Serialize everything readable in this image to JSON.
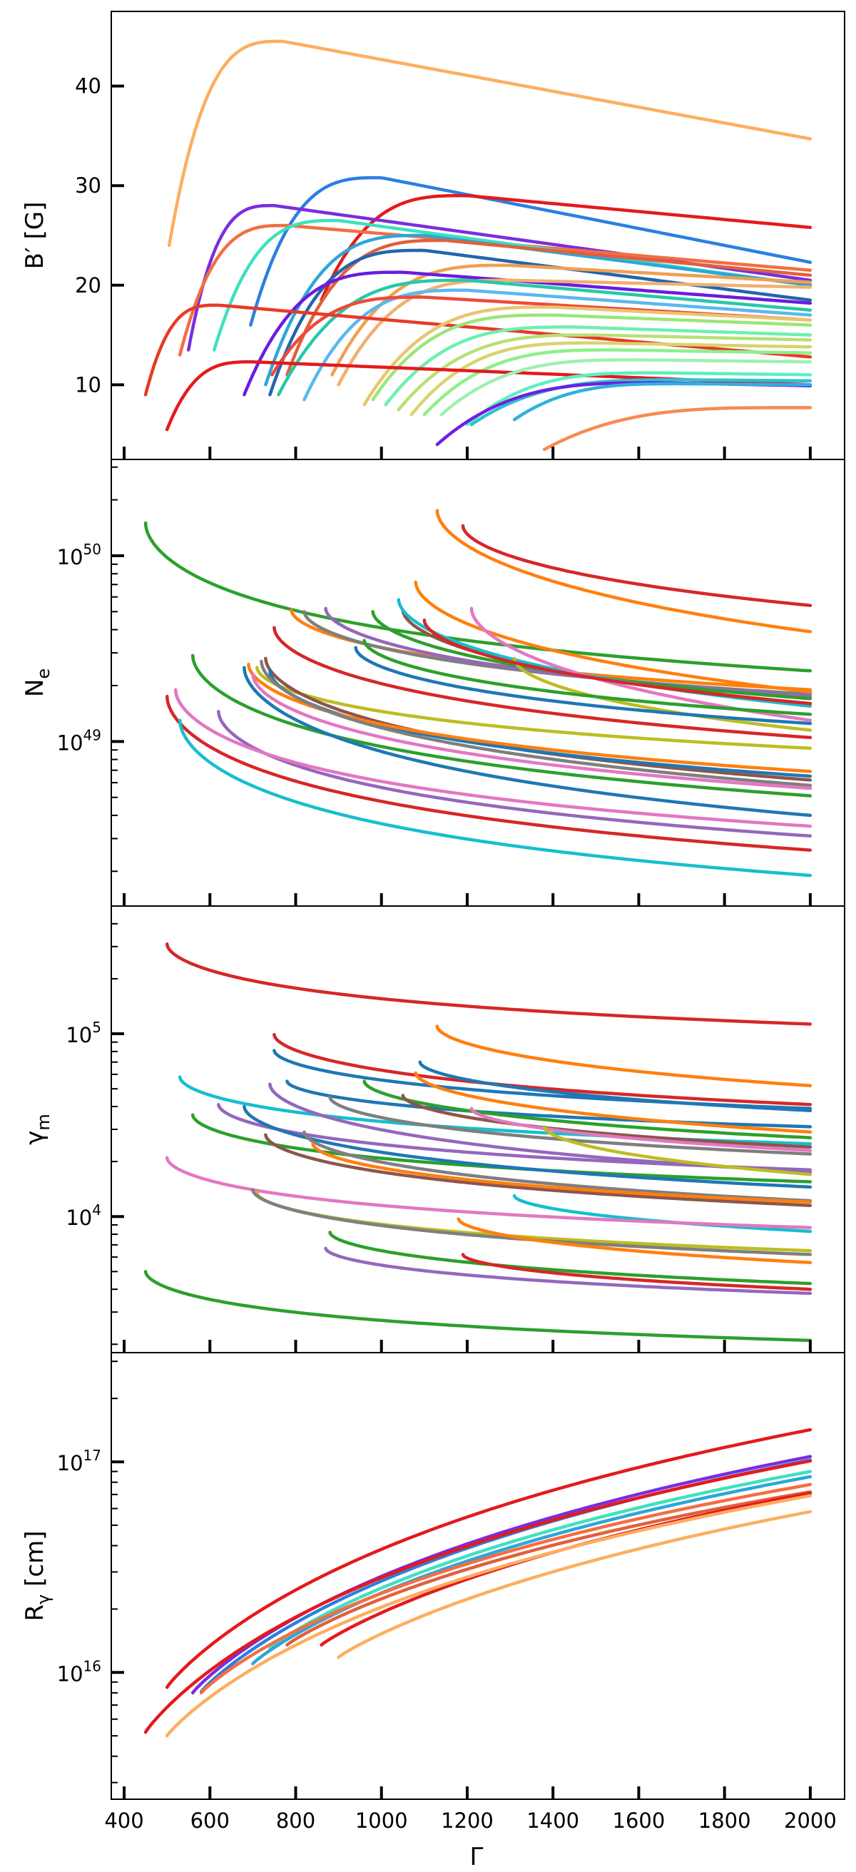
{
  "xlabel": "Γ",
  "x_ticks": [
    "400",
    "600",
    "800",
    "1000",
    "1200",
    "1400",
    "1600",
    "1800",
    "2000"
  ],
  "chart_data": [
    {
      "type": "line",
      "scale": "linear",
      "ylabel": "B′ [G]",
      "xlim": [
        370,
        2080
      ],
      "ylim": [
        2.5,
        47.5
      ],
      "y_ticks": [
        {
          "value": 10,
          "label": "10"
        },
        {
          "value": 20,
          "label": "20"
        },
        {
          "value": 30,
          "label": "30"
        },
        {
          "value": 40,
          "label": "40"
        }
      ],
      "series": [
        {
          "color": "#fdae61",
          "start": 505,
          "end": 2000,
          "y_start": 24,
          "y_peak": 44.5,
          "x_peak": 770,
          "y_end": 34.7
        },
        {
          "color": "#2c7fe0",
          "start": 695,
          "end": 2000,
          "y_start": 16,
          "y_peak": 30.8,
          "x_peak": 1000,
          "y_end": 22.3
        },
        {
          "color": "#e41a1c",
          "start": 860,
          "end": 2000,
          "y_start": 18.5,
          "y_peak": 29,
          "x_peak": 1200,
          "y_end": 25.8
        },
        {
          "color": "#7b2de0",
          "start": 550,
          "end": 2000,
          "y_start": 13.5,
          "y_peak": 28,
          "x_peak": 750,
          "y_end": 20.5
        },
        {
          "color": "#f46d43",
          "start": 530,
          "end": 2000,
          "y_start": 13,
          "y_peak": 26,
          "x_peak": 780,
          "y_end": 21.5
        },
        {
          "color": "#3fe0c0",
          "start": 610,
          "end": 2000,
          "y_start": 13.5,
          "y_peak": 26.5,
          "x_peak": 900,
          "y_end": 20
        },
        {
          "color": "#2ca7d8",
          "start": 730,
          "end": 2000,
          "y_start": 10,
          "y_peak": 25,
          "x_peak": 1100,
          "y_end": 20
        },
        {
          "color": "#e0603c",
          "start": 780,
          "end": 2000,
          "y_start": 11,
          "y_peak": 24.5,
          "x_peak": 1150,
          "y_end": 21
        },
        {
          "color": "#2166ac",
          "start": 740,
          "end": 2000,
          "y_start": 9,
          "y_peak": 23.5,
          "x_peak": 1100,
          "y_end": 18.5
        },
        {
          "color": "#f0a050",
          "start": 885,
          "end": 2000,
          "y_start": 11,
          "y_peak": 22,
          "x_peak": 1300,
          "y_end": 20.3
        },
        {
          "color": "#6a1ce0",
          "start": 680,
          "end": 2000,
          "y_start": 9,
          "y_peak": 21.3,
          "x_peak": 1050,
          "y_end": 18.2
        },
        {
          "color": "#f0b070",
          "start": 900,
          "end": 2000,
          "y_start": 10,
          "y_peak": 20.5,
          "x_peak": 1300,
          "y_end": 19.8
        },
        {
          "color": "#26c9a6",
          "start": 760,
          "end": 2000,
          "y_start": 9,
          "y_peak": 20.5,
          "x_peak": 1200,
          "y_end": 17.5
        },
        {
          "color": "#5ab8f0",
          "start": 820,
          "end": 2000,
          "y_start": 8.5,
          "y_peak": 19.5,
          "x_peak": 1200,
          "y_end": 17
        },
        {
          "color": "#ef4a3a",
          "start": 745,
          "end": 2000,
          "y_start": 11,
          "y_peak": 18.8,
          "x_peak": 1100,
          "y_end": 16.5
        },
        {
          "color": "#e83a26",
          "start": 450,
          "end": 2000,
          "y_start": 9,
          "y_peak": 18,
          "x_peak": 620,
          "y_end": 12.8
        },
        {
          "color": "#e8c56f",
          "start": 960,
          "end": 2000,
          "y_start": 8,
          "y_peak": 17.8,
          "x_peak": 1400,
          "y_end": 16.5
        },
        {
          "color": "#9be67a",
          "start": 980,
          "end": 2000,
          "y_start": 8.5,
          "y_peak": 17,
          "x_peak": 1400,
          "y_end": 16
        },
        {
          "color": "#6cf0b0",
          "start": 1010,
          "end": 2000,
          "y_start": 8,
          "y_peak": 15.8,
          "x_peak": 1450,
          "y_end": 15
        },
        {
          "color": "#b7e076",
          "start": 1040,
          "end": 2000,
          "y_start": 7.5,
          "y_peak": 15,
          "x_peak": 1500,
          "y_end": 14.5
        },
        {
          "color": "#d8d46f",
          "start": 1070,
          "end": 2000,
          "y_start": 7,
          "y_peak": 14.2,
          "x_peak": 1500,
          "y_end": 13.8
        },
        {
          "color": "#8ef08a",
          "start": 1100,
          "end": 2000,
          "y_start": 7,
          "y_peak": 13.5,
          "x_peak": 1550,
          "y_end": 13.2
        },
        {
          "color": "#e41a1c",
          "start": 500,
          "end": 2000,
          "y_start": 5.5,
          "y_peak": 12.3,
          "x_peak": 700,
          "y_end": 10
        },
        {
          "color": "#9ff0b0",
          "start": 1140,
          "end": 2000,
          "y_start": 7,
          "y_peak": 12.5,
          "x_peak": 1600,
          "y_end": 12.3
        },
        {
          "color": "#5cf0c0",
          "start": 1200,
          "end": 2000,
          "y_start": 6,
          "y_peak": 11.2,
          "x_peak": 1650,
          "y_end": 11
        },
        {
          "color": "#30c0d0",
          "start": 1210,
          "end": 2000,
          "y_start": 6,
          "y_peak": 10.5,
          "x_peak": 1700,
          "y_end": 10.4
        },
        {
          "color": "#7020e0",
          "start": 1130,
          "end": 2000,
          "y_start": 4,
          "y_peak": 10.2,
          "x_peak": 1650,
          "y_end": 9.9
        },
        {
          "color": "#30b0e0",
          "start": 1310,
          "end": 2000,
          "y_start": 6.5,
          "y_peak": 10.1,
          "x_peak": 1700,
          "y_end": 10
        },
        {
          "color": "#f88a50",
          "start": 1380,
          "end": 2000,
          "y_start": 3.5,
          "y_peak": 7.7,
          "x_peak": 1950,
          "y_end": 7.7
        }
      ]
    },
    {
      "type": "line",
      "scale": "log",
      "ylabel": "Ne",
      "ylabel_main": "N",
      "ylabel_sub": "e",
      "xlim": [
        370,
        2080
      ],
      "ylim": [
        1.3e+48,
        3.3e+50
      ],
      "y_ticks": [
        {
          "value": 1e+49,
          "label": "10",
          "exp": "49"
        },
        {
          "value": 1e+50,
          "label": "10",
          "exp": "50"
        }
      ],
      "series": [
        {
          "color": "#2ca02c",
          "start": 450,
          "end": 2000,
          "y_start": 1.5e+50,
          "y_end": 2.4e+49
        },
        {
          "color": "#ff7f0e",
          "start": 1130,
          "end": 2000,
          "y_start": 1.75e+50,
          "y_end": 3.9e+49
        },
        {
          "color": "#d62728",
          "start": 1190,
          "end": 2000,
          "y_start": 1.45e+50,
          "y_end": 5.4e+49
        },
        {
          "color": "#ff7f0e",
          "start": 790,
          "end": 2000,
          "y_start": 5.1e+49,
          "y_end": 1.9e+49
        },
        {
          "color": "#7f7f7f",
          "start": 820,
          "end": 2000,
          "y_start": 5e+49,
          "y_end": 1.8e+49
        },
        {
          "color": "#9467bd",
          "start": 870,
          "end": 2000,
          "y_start": 5.2e+49,
          "y_end": 1.75e+49
        },
        {
          "color": "#2ca02c",
          "start": 980,
          "end": 2000,
          "y_start": 5e+49,
          "y_end": 1.7e+49
        },
        {
          "color": "#ff7f0e",
          "start": 1080,
          "end": 2000,
          "y_start": 7.2e+49,
          "y_end": 1.85e+49
        },
        {
          "color": "#8c564b",
          "start": 1050,
          "end": 2000,
          "y_start": 5.1e+49,
          "y_end": 1.6e+49
        },
        {
          "color": "#17becf",
          "start": 1040,
          "end": 2000,
          "y_start": 5.8e+49,
          "y_end": 1.55e+49
        },
        {
          "color": "#e377c2",
          "start": 1210,
          "end": 2000,
          "y_start": 5.2e+49,
          "y_end": 1.3e+49
        },
        {
          "color": "#bcbd22",
          "start": 1310,
          "end": 2000,
          "y_start": 2.8e+49,
          "y_end": 1.15e+49
        },
        {
          "color": "#d62728",
          "start": 750,
          "end": 2000,
          "y_start": 4.1e+49,
          "y_end": 1.05e+49
        },
        {
          "color": "#2ca02c",
          "start": 560,
          "end": 2000,
          "y_start": 2.9e+49,
          "y_end": 5.1e+48
        },
        {
          "color": "#1f77b4",
          "start": 680,
          "end": 2000,
          "y_start": 2.5e+49,
          "y_end": 4e+48
        },
        {
          "color": "#9467bd",
          "start": 620,
          "end": 2000,
          "y_start": 1.45e+49,
          "y_end": 3.1e+48
        },
        {
          "color": "#e377c2",
          "start": 520,
          "end": 2000,
          "y_start": 1.9e+49,
          "y_end": 3.5e+48
        },
        {
          "color": "#d62728",
          "start": 500,
          "end": 2000,
          "y_start": 1.75e+49,
          "y_end": 2.6e+48
        },
        {
          "color": "#17becf",
          "start": 530,
          "end": 2000,
          "y_start": 1.3e+49,
          "y_end": 1.9e+48
        },
        {
          "color": "#bcbd22",
          "start": 710,
          "end": 2000,
          "y_start": 2.5e+49,
          "y_end": 9.2e+48
        },
        {
          "color": "#8c564b",
          "start": 730,
          "end": 2000,
          "y_start": 2.8e+49,
          "y_end": 6.2e+48
        },
        {
          "color": "#1f77b4",
          "start": 740,
          "end": 2000,
          "y_start": 2.4e+49,
          "y_end": 6.5e+48
        },
        {
          "color": "#ff7f0e",
          "start": 690,
          "end": 2000,
          "y_start": 2.6e+49,
          "y_end": 6.9e+48
        },
        {
          "color": "#7f7f7f",
          "start": 720,
          "end": 2000,
          "y_start": 2.7e+49,
          "y_end": 5.8e+48
        },
        {
          "color": "#e377c2",
          "start": 700,
          "end": 2000,
          "y_start": 2.3e+49,
          "y_end": 5.6e+48
        },
        {
          "color": "#2ca02c",
          "start": 960,
          "end": 2000,
          "y_start": 3.5e+49,
          "y_end": 1.4e+49
        },
        {
          "color": "#1f77b4",
          "start": 940,
          "end": 2000,
          "y_start": 3.2e+49,
          "y_end": 1.25e+49
        },
        {
          "color": "#d62728",
          "start": 1100,
          "end": 2000,
          "y_start": 4.5e+49,
          "y_end": 1.6e+49
        }
      ]
    },
    {
      "type": "line",
      "scale": "log",
      "ylabel": "γm",
      "ylabel_main": "γ",
      "ylabel_sub": "m",
      "xlim": [
        370,
        2080
      ],
      "ylim": [
        1800.0,
        500000.0
      ],
      "y_ticks": [
        {
          "value": 10000.0,
          "label": "10",
          "exp": "4"
        },
        {
          "value": 100000.0,
          "label": "10",
          "exp": "5"
        }
      ],
      "series": [
        {
          "color": "#d62728",
          "start": 500,
          "end": 2000,
          "y_start": 310000.0,
          "y_end": 113000.0
        },
        {
          "color": "#ff7f0e",
          "start": 1130,
          "end": 2000,
          "y_start": 110000.0,
          "y_end": 52000.0
        },
        {
          "color": "#d62728",
          "start": 750,
          "end": 2000,
          "y_start": 99000.0,
          "y_end": 41000.0
        },
        {
          "color": "#1f77b4",
          "start": 750,
          "end": 2000,
          "y_start": 81000.0,
          "y_end": 39000.0
        },
        {
          "color": "#1f77b4",
          "start": 1090,
          "end": 2000,
          "y_start": 70000.0,
          "y_end": 38000.0
        },
        {
          "color": "#1f77b4",
          "start": 780,
          "end": 2000,
          "y_start": 55000.0,
          "y_end": 31000.0
        },
        {
          "color": "#17becf",
          "start": 530,
          "end": 2000,
          "y_start": 58000.0,
          "y_end": 25000.0
        },
        {
          "color": "#2ca02c",
          "start": 960,
          "end": 2000,
          "y_start": 55000.0,
          "y_end": 27000.0
        },
        {
          "color": "#ff7f0e",
          "start": 1080,
          "end": 2000,
          "y_start": 61000.0,
          "y_end": 29000.0
        },
        {
          "color": "#7f7f7f",
          "start": 880,
          "end": 2000,
          "y_start": 45000.0,
          "y_end": 22000.0
        },
        {
          "color": "#8c564b",
          "start": 1050,
          "end": 2000,
          "y_start": 46000.0,
          "y_end": 24000.0
        },
        {
          "color": "#9467bd",
          "start": 620,
          "end": 2000,
          "y_start": 41000.0,
          "y_end": 18000.0
        },
        {
          "color": "#9467bd",
          "start": 740,
          "end": 2000,
          "y_start": 53000.0,
          "y_end": 17500.0
        },
        {
          "color": "#2ca02c",
          "start": 560,
          "end": 2000,
          "y_start": 36000.0,
          "y_end": 15500.0
        },
        {
          "color": "#1f77b4",
          "start": 680,
          "end": 2000,
          "y_start": 40000.0,
          "y_end": 14500.0
        },
        {
          "color": "#8c564b",
          "start": 730,
          "end": 2000,
          "y_start": 28000.0,
          "y_end": 11500.0
        },
        {
          "color": "#7f7f7f",
          "start": 820,
          "end": 2000,
          "y_start": 29000.0,
          "y_end": 12200.0
        },
        {
          "color": "#ff7f0e",
          "start": 840,
          "end": 2000,
          "y_start": 25000.0,
          "y_end": 12000.0
        },
        {
          "color": "#e377c2",
          "start": 1210,
          "end": 2000,
          "y_start": 39000.0,
          "y_end": 23000.0
        },
        {
          "color": "#17becf",
          "start": 1310,
          "end": 2000,
          "y_start": 13000.0,
          "y_end": 8300.0
        },
        {
          "color": "#bcbd22",
          "start": 1380,
          "end": 2000,
          "y_start": 31000.0,
          "y_end": 17000.0
        },
        {
          "color": "#e377c2",
          "start": 500,
          "end": 2000,
          "y_start": 21000.0,
          "y_end": 8700.0
        },
        {
          "color": "#bcbd22",
          "start": 710,
          "end": 2000,
          "y_start": 13500.0,
          "y_end": 6500.0
        },
        {
          "color": "#7f7f7f",
          "start": 700,
          "end": 2000,
          "y_start": 14000.0,
          "y_end": 6200.0
        },
        {
          "color": "#ff7f0e",
          "start": 1180,
          "end": 2000,
          "y_start": 9700.0,
          "y_end": 5600.0
        },
        {
          "color": "#2ca02c",
          "start": 880,
          "end": 2000,
          "y_start": 8200.0,
          "y_end": 4300.0
        },
        {
          "color": "#d62728",
          "start": 1190,
          "end": 2000,
          "y_start": 6200.0,
          "y_end": 4000.0
        },
        {
          "color": "#9467bd",
          "start": 870,
          "end": 2000,
          "y_start": 6700.0,
          "y_end": 3800.0
        },
        {
          "color": "#2ca02c",
          "start": 450,
          "end": 2000,
          "y_start": 5000.0,
          "y_end": 2100.0
        }
      ]
    },
    {
      "type": "line",
      "scale": "log",
      "ylabel": "Rγ [cm]",
      "ylabel_main": "R",
      "ylabel_sub": "γ",
      "ylabel_tail": " [cm]",
      "xlim": [
        370,
        2080
      ],
      "ylim": [
        2500000000000000.0,
        3.3e+17
      ],
      "y_ticks": [
        {
          "value": 1e+16,
          "label": "10",
          "exp": "16"
        },
        {
          "value": 1e+17,
          "label": "10",
          "exp": "17"
        }
      ],
      "series": [
        {
          "color": "#e41a1c",
          "start": 500,
          "end": 2000,
          "y_start": 8500000000000000.0,
          "y_end": 1.42e+17
        },
        {
          "color": "#7b2de0",
          "start": 560,
          "end": 2000,
          "y_start": 8000000000000000.0,
          "y_end": 1.06e+17
        },
        {
          "color": "#2c7fe0",
          "start": 580,
          "end": 2000,
          "y_start": 8100000000000000.0,
          "y_end": 1.02e+17
        },
        {
          "color": "#e41a1c",
          "start": 450,
          "end": 2000,
          "y_start": 5200000000000000.0,
          "y_end": 1.01e+17
        },
        {
          "color": "#3fe0c0",
          "start": 740,
          "end": 2000,
          "y_start": 1.3e+16,
          "y_end": 9e+16
        },
        {
          "color": "#2ca7d8",
          "start": 700,
          "end": 2000,
          "y_start": 1.1e+16,
          "y_end": 8.5e+16
        },
        {
          "color": "#f46d43",
          "start": 580,
          "end": 2000,
          "y_start": 8000000000000000.0,
          "y_end": 7.8e+16
        },
        {
          "color": "#e0603c",
          "start": 780,
          "end": 2000,
          "y_start": 1.35e+16,
          "y_end": 7.2e+16
        },
        {
          "color": "#e41a1c",
          "start": 860,
          "end": 2000,
          "y_start": 1.35e+16,
          "y_end": 7.1e+16
        },
        {
          "color": "#fdae61",
          "start": 500,
          "end": 2000,
          "y_start": 5000000000000000.0,
          "y_end": 6.9e+16
        },
        {
          "color": "#fdae61",
          "start": 900,
          "end": 2000,
          "y_start": 1.18e+16,
          "y_end": 5.8e+16
        }
      ]
    }
  ]
}
